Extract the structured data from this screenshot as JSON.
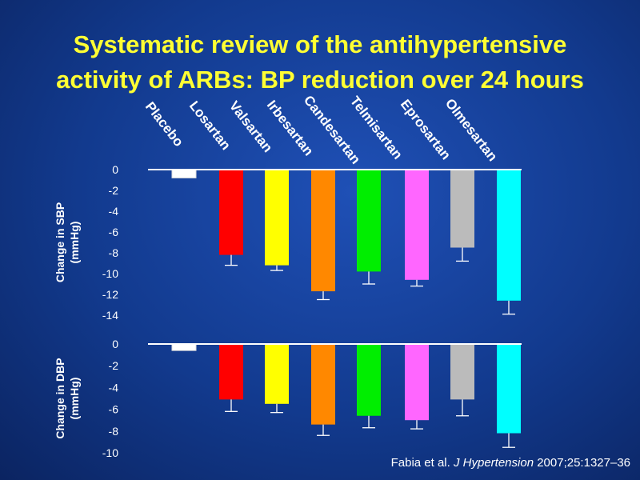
{
  "title": {
    "line1": "Systematic review of the antihypertensive",
    "line2": "activity of ARBs: BP reduction over 24 hours"
  },
  "citation": {
    "authors": "Fabia et al. ",
    "journal": "J Hypertension",
    "details": " 2007;25:1327–36"
  },
  "colors": {
    "title": "#ffff33",
    "background": "#1a4aa8",
    "axis": "#ffffff"
  },
  "chart_data": [
    {
      "type": "bar",
      "ylabel": "Change in SBP (mmHg)",
      "ylabel_lines": [
        "Change in SBP",
        "(mmHg)"
      ],
      "categories": [
        "Placebo",
        "Losartan",
        "Valsartan",
        "Irbesartan",
        "Candesartan",
        "Telmisartan",
        "Eprosartan",
        "Olmesartan"
      ],
      "values": [
        -0.8,
        -8.2,
        -9.2,
        -11.7,
        -9.8,
        -10.6,
        -7.5,
        -12.6
      ],
      "errors": [
        0,
        1.0,
        0.5,
        0.8,
        1.2,
        0.6,
        1.3,
        1.3
      ],
      "colors": [
        "#ffffff",
        "#ff0000",
        "#ffff00",
        "#ff8800",
        "#00ee00",
        "#ff66ff",
        "#bbbbbb",
        "#00ffff"
      ],
      "ylim": [
        -14,
        0
      ],
      "yticks": [
        0,
        -2,
        -4,
        -6,
        -8,
        -10,
        -12,
        -14
      ],
      "grid": false
    },
    {
      "type": "bar",
      "ylabel": "Change in DBP (mmHg)",
      "ylabel_lines": [
        "Change in DBP",
        "(mmHg)"
      ],
      "categories": [
        "Placebo",
        "Losartan",
        "Valsartan",
        "Irbesartan",
        "Candesartan",
        "Telmisartan",
        "Eprosartan",
        "Olmesartan"
      ],
      "values": [
        -0.6,
        -5.1,
        -5.5,
        -7.4,
        -6.6,
        -7.0,
        -5.1,
        -8.2
      ],
      "errors": [
        0,
        1.1,
        0.8,
        1.0,
        1.1,
        0.8,
        1.5,
        1.3
      ],
      "colors": [
        "#ffffff",
        "#ff0000",
        "#ffff00",
        "#ff8800",
        "#00ee00",
        "#ff66ff",
        "#bbbbbb",
        "#00ffff"
      ],
      "ylim": [
        -10,
        0
      ],
      "yticks": [
        0,
        -2,
        -4,
        -6,
        -8,
        -10
      ],
      "grid": false
    }
  ]
}
